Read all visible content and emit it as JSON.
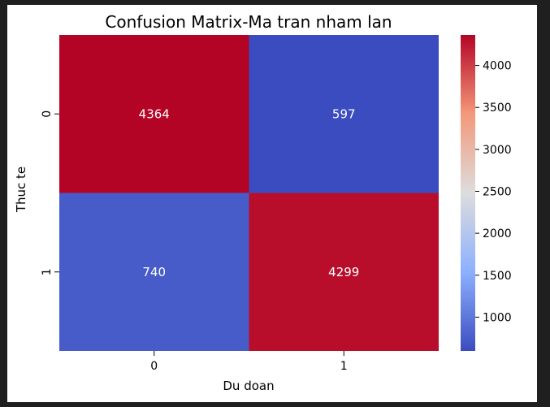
{
  "chart_data": {
    "type": "heatmap",
    "title": "Confusion Matrix-Ma tran nham lan",
    "xlabel": "Du doan",
    "ylabel": "Thuc te",
    "x_categories": [
      "0",
      "1"
    ],
    "y_categories": [
      "0",
      "1"
    ],
    "values": [
      [
        4364,
        597
      ],
      [
        740,
        4299
      ]
    ],
    "colormap": "coolwarm",
    "colorbar": {
      "min": 597,
      "max": 4364,
      "ticks": [
        1000,
        1500,
        2000,
        2500,
        3000,
        3500,
        4000
      ]
    }
  },
  "colors": {
    "background": "#1f1f1f",
    "figure": "#ffffff",
    "annotation": "#ffffff"
  }
}
